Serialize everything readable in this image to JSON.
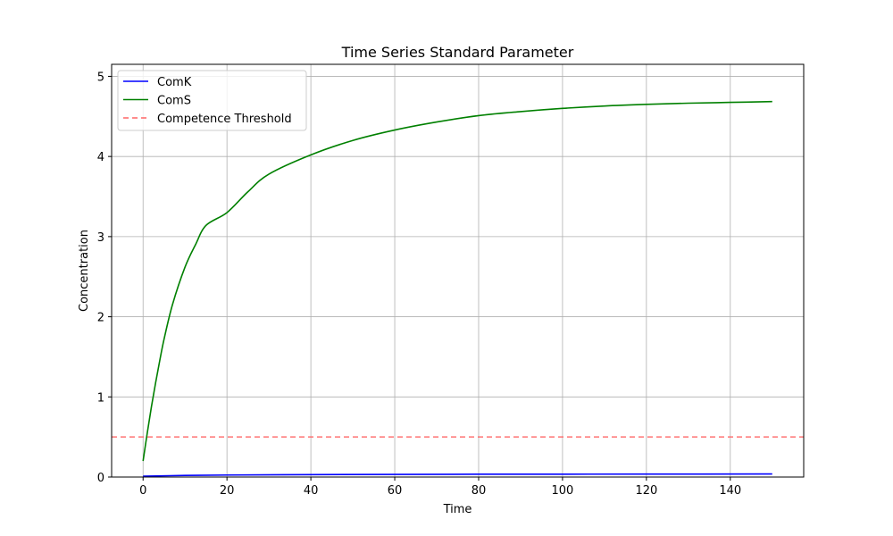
{
  "chart_data": {
    "type": "line",
    "title": "Time Series Standard Parameter",
    "xlabel": "Time",
    "ylabel": "Concentration",
    "xlim": [
      -7.5,
      157.5
    ],
    "ylim": [
      0,
      5.15
    ],
    "xticks": [
      0,
      20,
      40,
      60,
      80,
      100,
      120,
      140
    ],
    "yticks": [
      0,
      1,
      2,
      3,
      4,
      5
    ],
    "grid": true,
    "legend_position": "top-left",
    "series": [
      {
        "name": "ComK",
        "color": "#0000ff",
        "style": "solid",
        "x": [
          0,
          10,
          20,
          40,
          60,
          80,
          100,
          120,
          150
        ],
        "y": [
          0.01,
          0.02,
          0.025,
          0.03,
          0.033,
          0.035,
          0.036,
          0.037,
          0.038
        ]
      },
      {
        "name": "ComS",
        "color": "#008000",
        "style": "solid",
        "x": [
          0,
          1,
          2,
          3,
          4,
          5,
          7,
          10,
          12.5,
          15,
          20,
          25,
          30,
          40,
          50,
          60,
          70,
          80,
          90,
          100,
          110,
          120,
          130,
          140,
          150
        ],
        "y": [
          0.2,
          0.55,
          0.88,
          1.18,
          1.46,
          1.72,
          2.15,
          2.62,
          2.9,
          3.14,
          3.3,
          3.56,
          3.78,
          4.02,
          4.2,
          4.33,
          4.43,
          4.51,
          4.56,
          4.6,
          4.63,
          4.65,
          4.665,
          4.675,
          4.685
        ]
      },
      {
        "name": "Competence Threshold",
        "color": "#ff6666",
        "style": "dashed",
        "x": [
          -7.5,
          157.5
        ],
        "y": [
          0.5,
          0.5
        ]
      }
    ]
  }
}
